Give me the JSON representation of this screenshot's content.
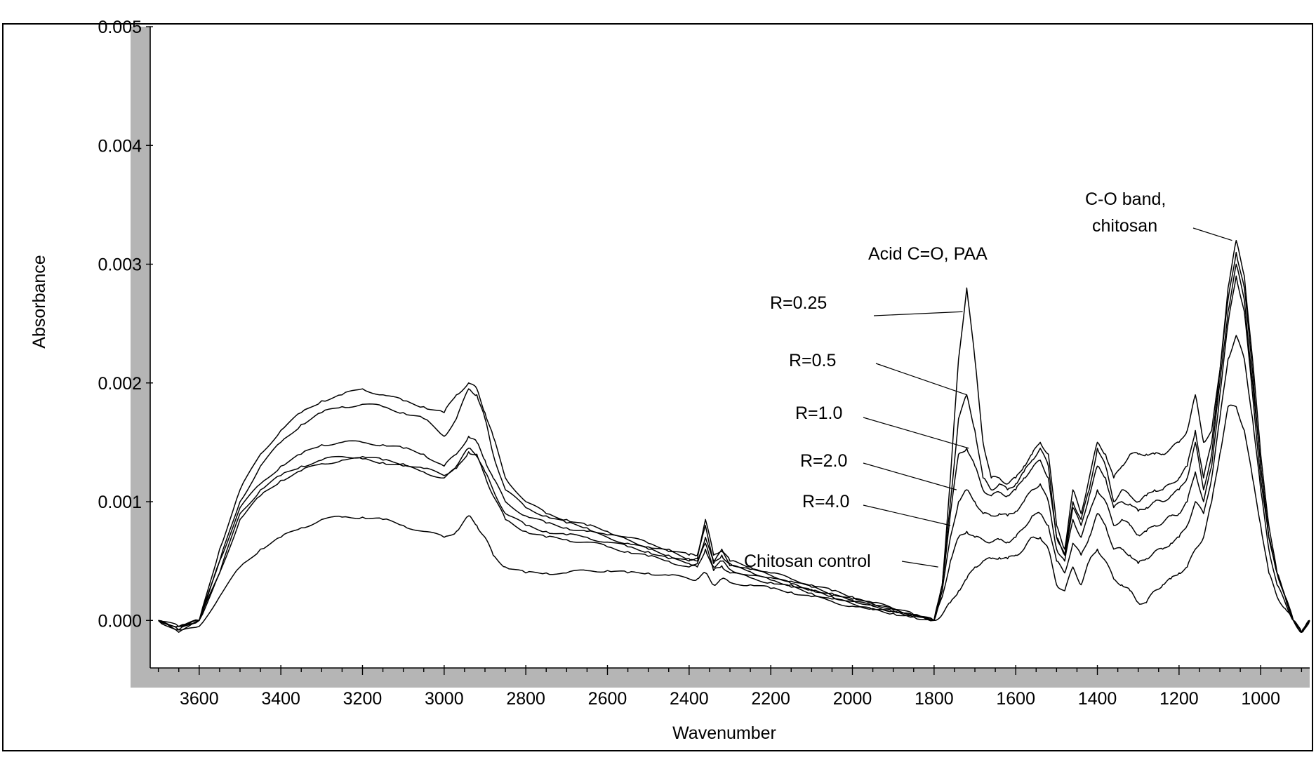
{
  "chart_data": {
    "type": "line",
    "title": "",
    "xlabel": "Wavenumber",
    "ylabel": "Absorbance",
    "xlim": [
      3720,
      880
    ],
    "ylim": [
      -0.0004,
      0.005
    ],
    "x_reversed": true,
    "x_ticks": [
      3600,
      3400,
      3200,
      3000,
      2800,
      2600,
      2400,
      2200,
      2000,
      1800,
      1600,
      1400,
      1200,
      1000
    ],
    "x_tick_labels": [
      "3600",
      "3400",
      "3200",
      "3000",
      "2800",
      "2600",
      "2400",
      "2200",
      "2000",
      "1800",
      "1600",
      "1400",
      "1200",
      "1000"
    ],
    "y_ticks": [
      0.0,
      0.001,
      0.002,
      0.003,
      0.004,
      0.005
    ],
    "y_tick_labels": [
      "0.000",
      "0.001",
      "0.002",
      "0.003",
      "0.004",
      "0.005"
    ],
    "grid": false,
    "legend": "none",
    "annotations": [
      {
        "text": "Acid C=O, PAA",
        "points_to": [
          1720,
          0.0028
        ]
      },
      {
        "text": "C-O band,",
        "points_to": [
          1070,
          0.0032
        ]
      },
      {
        "text": "chitosan",
        "points_to": null
      },
      {
        "text": "R=0.25",
        "points_to": [
          1730,
          0.0026
        ]
      },
      {
        "text": "R=0.5",
        "points_to": [
          1720,
          0.0019
        ]
      },
      {
        "text": "R=1.0",
        "points_to": [
          1715,
          0.00145
        ]
      },
      {
        "text": "R=2.0",
        "points_to": [
          1745,
          0.0011
        ]
      },
      {
        "text": "R=4.0",
        "points_to": [
          1760,
          0.0008
        ]
      },
      {
        "text": "Chitosan control",
        "points_to": [
          1790,
          0.00045
        ]
      }
    ],
    "x": [
      3700,
      3650,
      3600,
      3550,
      3500,
      3450,
      3400,
      3350,
      3300,
      3250,
      3200,
      3150,
      3100,
      3050,
      3000,
      2970,
      2940,
      2920,
      2900,
      2880,
      2850,
      2800,
      2750,
      2700,
      2650,
      2600,
      2550,
      2500,
      2450,
      2400,
      2380,
      2360,
      2340,
      2320,
      2300,
      2250,
      2200,
      2150,
      2100,
      2050,
      2000,
      1950,
      1900,
      1850,
      1800,
      1780,
      1760,
      1740,
      1720,
      1700,
      1680,
      1660,
      1640,
      1620,
      1600,
      1580,
      1560,
      1540,
      1520,
      1500,
      1480,
      1460,
      1440,
      1420,
      1400,
      1380,
      1360,
      1340,
      1320,
      1300,
      1280,
      1260,
      1240,
      1220,
      1200,
      1180,
      1160,
      1140,
      1120,
      1100,
      1080,
      1060,
      1040,
      1020,
      1000,
      980,
      960,
      940,
      920,
      900,
      880
    ],
    "series": [
      {
        "values": [
          0.0,
          -5e-05,
          0.0,
          0.0006,
          0.0011,
          0.0014,
          0.0016,
          0.00175,
          0.00185,
          0.0019,
          0.00195,
          0.0019,
          0.00185,
          0.0018,
          0.00175,
          0.0019,
          0.002,
          0.00195,
          0.00175,
          0.00155,
          0.0012,
          0.001,
          0.0009,
          0.00085,
          0.0008,
          0.00075,
          0.0007,
          0.00065,
          0.0006,
          0.00055,
          0.00055,
          0.00085,
          0.00055,
          0.0006,
          0.0005,
          0.00045,
          0.0004,
          0.00035,
          0.0003,
          0.00025,
          0.0002,
          0.00015,
          0.0001,
          5e-05,
          0.0,
          0.0003,
          0.0012,
          0.0022,
          0.0028,
          0.0022,
          0.0015,
          0.0012,
          0.0012,
          0.00115,
          0.0012,
          0.0013,
          0.0014,
          0.0015,
          0.0014,
          0.0008,
          0.0006,
          0.0011,
          0.0009,
          0.0012,
          0.0015,
          0.0014,
          0.0012,
          0.0013,
          0.0014,
          0.0014,
          0.0014,
          0.0014,
          0.0014,
          0.00145,
          0.0015,
          0.0016,
          0.0019,
          0.0015,
          0.0016,
          0.0021,
          0.0028,
          0.0032,
          0.0029,
          0.0022,
          0.0014,
          0.0008,
          0.0004,
          0.0002,
          0.0,
          -0.0001,
          0.0
        ]
      },
      {
        "values": [
          0.0,
          -5e-05,
          0.0,
          0.0005,
          0.001,
          0.0013,
          0.0015,
          0.00165,
          0.00175,
          0.0018,
          0.00182,
          0.0018,
          0.00175,
          0.0017,
          0.00155,
          0.0017,
          0.00195,
          0.0019,
          0.0017,
          0.0014,
          0.0011,
          0.00095,
          0.00088,
          0.00082,
          0.00078,
          0.00072,
          0.00068,
          0.00062,
          0.00058,
          0.00052,
          0.00052,
          0.0008,
          0.0005,
          0.00058,
          0.00048,
          0.00043,
          0.00038,
          0.00033,
          0.00028,
          0.00023,
          0.00018,
          0.00014,
          0.0001,
          5e-05,
          0.0,
          0.0003,
          0.001,
          0.0017,
          0.0019,
          0.0016,
          0.0012,
          0.0011,
          0.00115,
          0.0011,
          0.00115,
          0.00125,
          0.00135,
          0.00145,
          0.0013,
          0.0007,
          0.00055,
          0.001,
          0.00085,
          0.0011,
          0.00145,
          0.0013,
          0.001,
          0.0011,
          0.00105,
          0.001,
          0.00105,
          0.0011,
          0.0011,
          0.00115,
          0.0012,
          0.0013,
          0.0016,
          0.0012,
          0.0015,
          0.0021,
          0.0027,
          0.0031,
          0.0028,
          0.0021,
          0.0013,
          0.0007,
          0.0004,
          0.0002,
          0.0,
          -0.0001,
          0.0
        ]
      },
      {
        "values": [
          0.0,
          -5e-05,
          0.0,
          0.0005,
          0.00095,
          0.00115,
          0.0013,
          0.0014,
          0.00148,
          0.0015,
          0.0015,
          0.00148,
          0.00145,
          0.0014,
          0.0013,
          0.0014,
          0.00155,
          0.0015,
          0.00135,
          0.0012,
          0.001,
          0.00088,
          0.00082,
          0.00078,
          0.00075,
          0.0007,
          0.00065,
          0.0006,
          0.00055,
          0.0005,
          0.0005,
          0.0007,
          0.00048,
          0.00055,
          0.00046,
          0.00041,
          0.00036,
          0.00031,
          0.00026,
          0.00021,
          0.00017,
          0.00013,
          9e-05,
          5e-05,
          0.0,
          0.0003,
          0.0009,
          0.0014,
          0.00145,
          0.0013,
          0.0011,
          0.00105,
          0.00108,
          0.00105,
          0.0011,
          0.0012,
          0.00128,
          0.00135,
          0.0012,
          0.0007,
          0.00055,
          0.00095,
          0.0008,
          0.00105,
          0.0013,
          0.0012,
          0.00095,
          0.001,
          0.00098,
          0.00092,
          0.00095,
          0.001,
          0.001,
          0.00105,
          0.0011,
          0.0012,
          0.0015,
          0.0011,
          0.0014,
          0.002,
          0.0026,
          0.003,
          0.0027,
          0.002,
          0.0013,
          0.0007,
          0.0004,
          0.0002,
          0.0,
          -0.0001,
          0.0
        ]
      },
      {
        "values": [
          0.0,
          -8e-05,
          0.0,
          0.0004,
          0.0009,
          0.0011,
          0.00122,
          0.0013,
          0.00135,
          0.00138,
          0.00138,
          0.00135,
          0.00132,
          0.00128,
          0.00122,
          0.0013,
          0.00145,
          0.0014,
          0.00125,
          0.0011,
          0.0009,
          0.0008,
          0.00075,
          0.00072,
          0.0007,
          0.00066,
          0.00062,
          0.00058,
          0.00052,
          0.00048,
          0.00048,
          0.00065,
          0.00045,
          0.0005,
          0.00043,
          0.00038,
          0.00034,
          0.0003,
          0.00025,
          0.0002,
          0.00016,
          0.00012,
          8e-05,
          4e-05,
          0.0,
          0.00025,
          0.0007,
          0.001,
          0.0011,
          0.001,
          0.0009,
          0.00088,
          0.0009,
          0.00088,
          0.00092,
          0.001,
          0.0011,
          0.00115,
          0.001,
          0.0006,
          0.0005,
          0.00085,
          0.0007,
          0.0009,
          0.0011,
          0.001,
          0.0008,
          0.00085,
          0.0008,
          0.00072,
          0.00075,
          0.0008,
          0.00082,
          0.00088,
          0.0009,
          0.001,
          0.00125,
          0.001,
          0.0013,
          0.0019,
          0.0025,
          0.0029,
          0.0026,
          0.0019,
          0.0012,
          0.0007,
          0.0004,
          0.0002,
          0.0,
          -0.0001,
          0.0
        ]
      },
      {
        "values": [
          0.0,
          -8e-05,
          0.0,
          0.0004,
          0.00085,
          0.00105,
          0.00118,
          0.00126,
          0.00132,
          0.00135,
          0.00136,
          0.00133,
          0.0013,
          0.00125,
          0.0012,
          0.00128,
          0.00142,
          0.00138,
          0.00122,
          0.00105,
          0.00085,
          0.00075,
          0.0007,
          0.00068,
          0.00066,
          0.00062,
          0.00058,
          0.00054,
          0.0005,
          0.00045,
          0.00045,
          0.0006,
          0.00042,
          0.00046,
          0.0004,
          0.00036,
          0.00032,
          0.00028,
          0.00023,
          0.00018,
          0.00014,
          0.0001,
          7e-05,
          3e-05,
          0.0,
          0.0002,
          0.0005,
          0.0007,
          0.00075,
          0.0007,
          0.00068,
          0.00066,
          0.00068,
          0.00066,
          0.0007,
          0.00078,
          0.00088,
          0.0009,
          0.0008,
          0.0005,
          0.0004,
          0.00065,
          0.00055,
          0.0007,
          0.0009,
          0.0008,
          0.0006,
          0.0006,
          0.00055,
          0.00048,
          0.00052,
          0.00058,
          0.0006,
          0.00065,
          0.0007,
          0.0008,
          0.001,
          0.0009,
          0.0012,
          0.0017,
          0.0022,
          0.0024,
          0.0022,
          0.0017,
          0.0011,
          0.0006,
          0.0003,
          0.00015,
          0.0,
          -0.0001,
          0.0
        ]
      },
      {
        "values": [
          0.0,
          -0.0001,
          -5e-05,
          0.0002,
          0.00045,
          0.0006,
          0.0007,
          0.00078,
          0.00085,
          0.00087,
          0.00087,
          0.00085,
          0.0008,
          0.00075,
          0.0007,
          0.00075,
          0.00088,
          0.0008,
          0.0007,
          0.00055,
          0.00045,
          0.0004,
          0.0004,
          0.0004,
          0.00042,
          0.00042,
          0.0004,
          0.0004,
          0.00038,
          0.00035,
          0.00035,
          0.0004,
          0.0003,
          0.00035,
          0.00032,
          0.0003,
          0.00027,
          0.00024,
          0.0002,
          0.00016,
          0.00012,
          9e-05,
          6e-05,
          3e-05,
          0.0,
          5e-05,
          0.00015,
          0.00025,
          0.00035,
          0.00045,
          0.0005,
          0.00052,
          0.00053,
          0.00052,
          0.00055,
          0.0006,
          0.0007,
          0.0007,
          0.0006,
          0.0003,
          0.00025,
          0.00045,
          0.0003,
          0.0005,
          0.0006,
          0.0005,
          0.00035,
          0.0003,
          0.00025,
          0.00015,
          0.00015,
          0.00025,
          0.0003,
          0.00035,
          0.0004,
          0.00045,
          0.0006,
          0.0007,
          0.001,
          0.0014,
          0.0018,
          0.0018,
          0.0016,
          0.0012,
          0.0008,
          0.0004,
          0.0002,
          0.0001,
          0.0,
          -0.0001,
          0.0
        ]
      }
    ]
  }
}
